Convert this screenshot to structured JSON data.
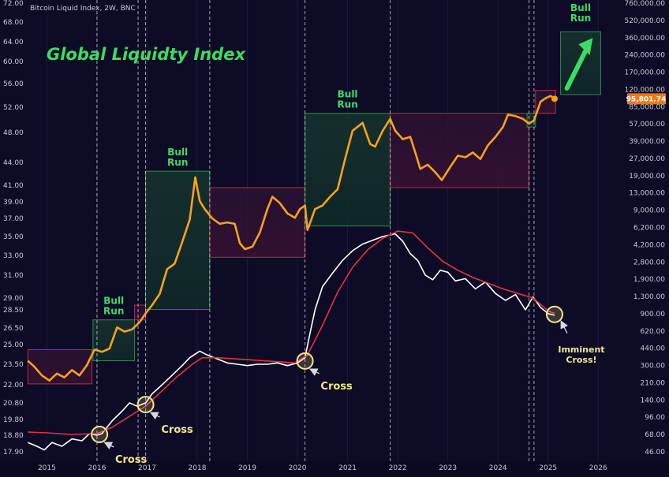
{
  "chart_data": {
    "type": "line",
    "title": "Global Liquidty Index",
    "source_label": "Bitcoin Liquid Index, 2W, BNC",
    "x_ticks": [
      "2015",
      "2016",
      "2017",
      "2018",
      "2019",
      "2020",
      "2021",
      "2022",
      "2023",
      "2024",
      "2025",
      "2026"
    ],
    "xlim": [
      2014.6,
      2026.5
    ],
    "left_axis_ticks": [
      "72.00",
      "68.00",
      "64.00",
      "60.00",
      "56.00",
      "52.00",
      "48.00",
      "44.00",
      "41.00",
      "39.00",
      "37.00",
      "35.00",
      "33.00",
      "31.00",
      "29.00",
      "28.50",
      "26.50",
      "25.00",
      "23.50",
      "22.00",
      "20.80",
      "19.80",
      "18.80",
      "17.90"
    ],
    "right_axis_ticks": [
      "760,000.00",
      "520,000.00",
      "360,000.00",
      "240,000.00",
      "170,000.00",
      "120,000.00",
      "85,000.00",
      "57,000.00",
      "39,000.00",
      "27,000.00",
      "19,000.00",
      "13,000.00",
      "9,000.00",
      "6,200.00",
      "4,200.00",
      "2,800.00",
      "1,900.00",
      "1,300.00",
      "900.00",
      "620.00",
      "440.00",
      "300.00",
      "210.00",
      "140.00",
      "96.00",
      "68.00",
      "46.00"
    ],
    "right_axis_scale": "log",
    "price_label": "95,801.74",
    "series": [
      {
        "name": "",
        "axis": "right",
        "color": "#f7a21b",
        "points": [
          [
            2014.62,
            330
          ],
          [
            2014.75,
            290
          ],
          [
            2014.9,
            240
          ],
          [
            2015.05,
            215
          ],
          [
            2015.2,
            250
          ],
          [
            2015.35,
            230
          ],
          [
            2015.5,
            270
          ],
          [
            2015.65,
            240
          ],
          [
            2015.8,
            300
          ],
          [
            2015.95,
            420
          ],
          [
            2016.1,
            400
          ],
          [
            2016.25,
            430
          ],
          [
            2016.4,
            680
          ],
          [
            2016.55,
            620
          ],
          [
            2016.7,
            650
          ],
          [
            2016.85,
            760
          ],
          [
            2016.97,
            920
          ],
          [
            2017.1,
            1100
          ],
          [
            2017.25,
            1400
          ],
          [
            2017.4,
            2400
          ],
          [
            2017.55,
            2700
          ],
          [
            2017.7,
            4300
          ],
          [
            2017.85,
            7000
          ],
          [
            2017.96,
            17500
          ],
          [
            2018.05,
            10500
          ],
          [
            2018.15,
            8800
          ],
          [
            2018.3,
            7200
          ],
          [
            2018.45,
            6400
          ],
          [
            2018.6,
            6600
          ],
          [
            2018.75,
            6400
          ],
          [
            2018.85,
            4200
          ],
          [
            2018.95,
            3700
          ],
          [
            2019.1,
            3900
          ],
          [
            2019.25,
            5300
          ],
          [
            2019.4,
            8800
          ],
          [
            2019.5,
            11500
          ],
          [
            2019.65,
            10000
          ],
          [
            2019.8,
            8000
          ],
          [
            2019.95,
            7300
          ],
          [
            2020.05,
            8800
          ],
          [
            2020.15,
            9500
          ],
          [
            2020.2,
            5600
          ],
          [
            2020.35,
            8800
          ],
          [
            2020.5,
            9500
          ],
          [
            2020.65,
            11500
          ],
          [
            2020.8,
            13500
          ],
          [
            2020.95,
            26000
          ],
          [
            2021.1,
            48000
          ],
          [
            2021.3,
            57000
          ],
          [
            2021.45,
            36000
          ],
          [
            2021.55,
            34000
          ],
          [
            2021.7,
            48000
          ],
          [
            2021.85,
            62000
          ],
          [
            2021.95,
            48000
          ],
          [
            2022.1,
            40000
          ],
          [
            2022.25,
            42000
          ],
          [
            2022.35,
            30000
          ],
          [
            2022.45,
            21000
          ],
          [
            2022.6,
            23000
          ],
          [
            2022.75,
            19500
          ],
          [
            2022.88,
            16500
          ],
          [
            2023.05,
            22000
          ],
          [
            2023.2,
            28000
          ],
          [
            2023.35,
            27000
          ],
          [
            2023.5,
            30000
          ],
          [
            2023.65,
            26000
          ],
          [
            2023.8,
            35000
          ],
          [
            2023.95,
            42000
          ],
          [
            2024.1,
            52000
          ],
          [
            2024.2,
            68000
          ],
          [
            2024.35,
            66000
          ],
          [
            2024.5,
            62000
          ],
          [
            2024.62,
            56000
          ],
          [
            2024.72,
            60000
          ],
          [
            2024.85,
            90000
          ],
          [
            2024.95,
            97000
          ],
          [
            2025.05,
            102000
          ],
          [
            2025.13,
            95800
          ]
        ]
      },
      {
        "name": "",
        "axis": "left",
        "color": "#ffffff",
        "points": [
          [
            2014.62,
            18.4
          ],
          [
            2014.8,
            18.2
          ],
          [
            2014.95,
            18.0
          ],
          [
            2015.1,
            18.4
          ],
          [
            2015.3,
            18.2
          ],
          [
            2015.5,
            18.6
          ],
          [
            2015.7,
            18.5
          ],
          [
            2015.85,
            18.9
          ],
          [
            2016.0,
            18.8
          ],
          [
            2016.1,
            18.9
          ],
          [
            2016.3,
            19.7
          ],
          [
            2016.5,
            20.3
          ],
          [
            2016.65,
            20.8
          ],
          [
            2016.8,
            20.6
          ],
          [
            2016.97,
            20.8
          ],
          [
            2017.1,
            21.4
          ],
          [
            2017.3,
            22.0
          ],
          [
            2017.5,
            22.7
          ],
          [
            2017.7,
            23.4
          ],
          [
            2017.85,
            24.0
          ],
          [
            2018.05,
            24.5
          ],
          [
            2018.2,
            24.2
          ],
          [
            2018.4,
            23.9
          ],
          [
            2018.6,
            23.6
          ],
          [
            2018.8,
            23.5
          ],
          [
            2019.0,
            23.4
          ],
          [
            2019.2,
            23.5
          ],
          [
            2019.4,
            23.5
          ],
          [
            2019.6,
            23.6
          ],
          [
            2019.8,
            23.4
          ],
          [
            2020.0,
            23.6
          ],
          [
            2020.15,
            24.0
          ],
          [
            2020.25,
            26.0
          ],
          [
            2020.35,
            28.5
          ],
          [
            2020.5,
            30.0
          ],
          [
            2020.7,
            31.2
          ],
          [
            2020.9,
            32.5
          ],
          [
            2021.1,
            33.5
          ],
          [
            2021.3,
            34.2
          ],
          [
            2021.5,
            34.6
          ],
          [
            2021.7,
            35.0
          ],
          [
            2021.95,
            35.3
          ],
          [
            2022.1,
            34.5
          ],
          [
            2022.25,
            33.2
          ],
          [
            2022.4,
            32.5
          ],
          [
            2022.55,
            31.0
          ],
          [
            2022.7,
            30.6
          ],
          [
            2022.85,
            31.5
          ],
          [
            2023.0,
            31.3
          ],
          [
            2023.15,
            30.5
          ],
          [
            2023.35,
            30.7
          ],
          [
            2023.55,
            29.8
          ],
          [
            2023.75,
            30.4
          ],
          [
            2023.95,
            29.4
          ],
          [
            2024.15,
            28.9
          ],
          [
            2024.35,
            29.3
          ],
          [
            2024.55,
            28.5
          ],
          [
            2024.7,
            29.1
          ],
          [
            2024.85,
            28.6
          ],
          [
            2025.0,
            28.1
          ],
          [
            2025.13,
            27.9
          ]
        ]
      },
      {
        "name": "",
        "axis": "left",
        "color": "#e8333a",
        "points": [
          [
            2014.62,
            19.0
          ],
          [
            2015.0,
            18.95
          ],
          [
            2015.5,
            18.85
          ],
          [
            2016.0,
            18.9
          ],
          [
            2016.3,
            19.3
          ],
          [
            2016.6,
            19.9
          ],
          [
            2016.97,
            20.6
          ],
          [
            2017.3,
            21.6
          ],
          [
            2017.6,
            22.6
          ],
          [
            2017.9,
            23.5
          ],
          [
            2018.1,
            24.0
          ],
          [
            2018.4,
            24.0
          ],
          [
            2018.8,
            23.9
          ],
          [
            2019.2,
            23.8
          ],
          [
            2019.6,
            23.7
          ],
          [
            2019.95,
            23.6
          ],
          [
            2020.2,
            24.2
          ],
          [
            2020.5,
            26.8
          ],
          [
            2020.8,
            29.5
          ],
          [
            2021.1,
            31.8
          ],
          [
            2021.4,
            33.6
          ],
          [
            2021.7,
            34.8
          ],
          [
            2022.0,
            35.6
          ],
          [
            2022.3,
            35.4
          ],
          [
            2022.6,
            33.8
          ],
          [
            2022.9,
            32.4
          ],
          [
            2023.2,
            31.5
          ],
          [
            2023.5,
            30.8
          ],
          [
            2023.8,
            30.3
          ],
          [
            2024.1,
            29.8
          ],
          [
            2024.4,
            29.4
          ],
          [
            2024.7,
            29.0
          ],
          [
            2025.0,
            28.4
          ],
          [
            2025.13,
            28.1
          ]
        ]
      }
    ],
    "regions": [
      {
        "type": "bear",
        "x0": 2014.62,
        "x1": 2015.9,
        "y0": 200,
        "y1": 420
      },
      {
        "type": "bull",
        "label": "Bull\nRun",
        "x0": 2015.92,
        "x1": 2016.75,
        "y0": 330,
        "y1": 800
      },
      {
        "type": "bear",
        "x0": 2016.75,
        "x1": 2016.97,
        "y0": 800,
        "y1": 1100
      },
      {
        "type": "bull",
        "label": "Bull\nRun",
        "x0": 2016.97,
        "x1": 2018.25,
        "y0": 1000,
        "y1": 20000
      },
      {
        "type": "bear",
        "x0": 2018.25,
        "x1": 2020.15,
        "y0": 3100,
        "y1": 14000
      },
      {
        "type": "bull",
        "label": "Bull\nRun",
        "x0": 2020.15,
        "x1": 2021.85,
        "y0": 6100,
        "y1": 70000
      },
      {
        "type": "bear",
        "x0": 2021.85,
        "x1": 2024.62,
        "y0": 14000,
        "y1": 70000
      },
      {
        "type": "bull",
        "x0": 2024.58,
        "x1": 2024.75,
        "y0": 52000,
        "y1": 70000
      },
      {
        "type": "bear",
        "x0": 2024.75,
        "x1": 2025.15,
        "y0": 70000,
        "y1": 115000
      },
      {
        "type": "bull",
        "label": "Bull\nRun",
        "x0": 2025.25,
        "x1": 2026.05,
        "y0": 105000,
        "y1": 410000
      }
    ],
    "cycle_lines_x": [
      2016.0,
      2016.82,
      2016.97,
      2018.25,
      2020.15,
      2021.85,
      2024.62,
      2024.72
    ],
    "cross_markers": [
      {
        "x": 2016.05,
        "y": 18.85,
        "label": "Cross"
      },
      {
        "x": 2016.97,
        "y": 20.7,
        "label": "Cross"
      },
      {
        "x": 2020.15,
        "y": 23.75,
        "label": "Cross"
      },
      {
        "x": 2025.13,
        "y": 28.0,
        "label": "Imminent\nCross!"
      }
    ]
  }
}
